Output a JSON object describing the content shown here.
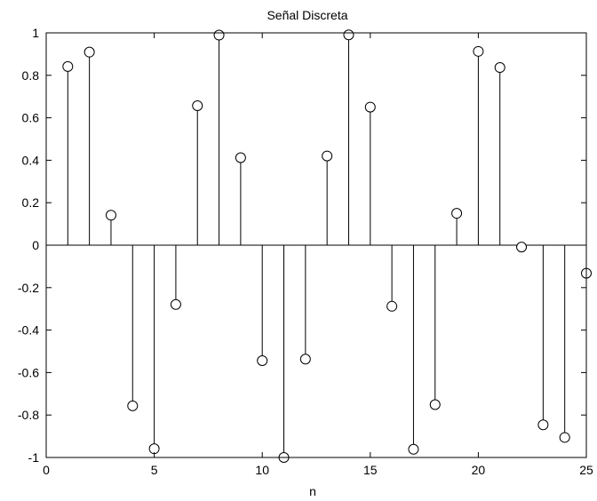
{
  "chart_data": {
    "type": "stem",
    "title": "Señal Discreta",
    "xlabel": "n",
    "ylabel": "",
    "xlim": [
      0,
      25
    ],
    "ylim": [
      -1,
      1
    ],
    "xticks": [
      0,
      5,
      10,
      15,
      20,
      25
    ],
    "yticks": [
      -1,
      -0.8,
      -0.6,
      -0.4,
      -0.2,
      0,
      0.2,
      0.4,
      0.6,
      0.8,
      1
    ],
    "grid": false,
    "marker": "circle-open",
    "series": [
      {
        "x": [
          1,
          2,
          3,
          4,
          5,
          6,
          7,
          8,
          9,
          10,
          11,
          12,
          13,
          14,
          15,
          16,
          17,
          18,
          19,
          20,
          21,
          22,
          23,
          24,
          25
        ],
        "values": [
          0.8415,
          0.9093,
          0.1411,
          -0.7568,
          -0.9589,
          -0.2794,
          0.657,
          0.9894,
          0.4121,
          -0.544,
          -1.0,
          -0.5366,
          0.4202,
          0.9906,
          0.6503,
          -0.2879,
          -0.9614,
          -0.751,
          0.1499,
          0.9129,
          0.8367,
          -0.0089,
          -0.8462,
          -0.9056,
          -0.1324
        ]
      }
    ]
  }
}
